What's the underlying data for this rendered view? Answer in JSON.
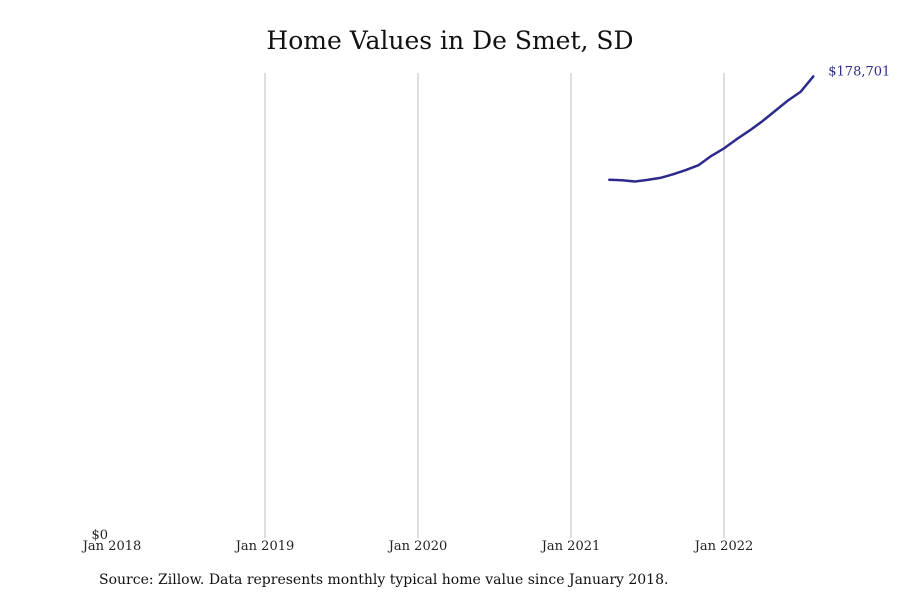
{
  "chart_data": {
    "type": "line",
    "title": "Home Values in De Smet, SD",
    "xlabel": "",
    "ylabel": "",
    "x_tick_labels": [
      "Jan 2018",
      "Jan 2019",
      "Jan 2020",
      "Jan 2021",
      "Jan 2022"
    ],
    "y_tick_labels": [
      "$0"
    ],
    "x_range": [
      "2018-01",
      "2022-08"
    ],
    "ylim": [
      0,
      180000
    ],
    "grid": "vertical",
    "line_color": "#2e2a8c",
    "end_label": "$178,701",
    "series": [
      {
        "x": [
          "2021-04",
          "2021-05",
          "2021-06",
          "2021-07",
          "2021-08",
          "2021-09",
          "2021-10",
          "2021-11",
          "2021-12",
          "2022-01",
          "2022-02",
          "2022-03",
          "2022-04",
          "2022-05",
          "2022-06",
          "2022-07",
          "2022-08"
        ],
        "values": [
          138700,
          138500,
          138000,
          138600,
          139400,
          140800,
          142400,
          144300,
          147900,
          150800,
          154400,
          157700,
          161300,
          165300,
          169300,
          172700,
          178701
        ]
      }
    ]
  },
  "source_note": "Source: Zillow. Data represents monthly typical home value since January 2018."
}
